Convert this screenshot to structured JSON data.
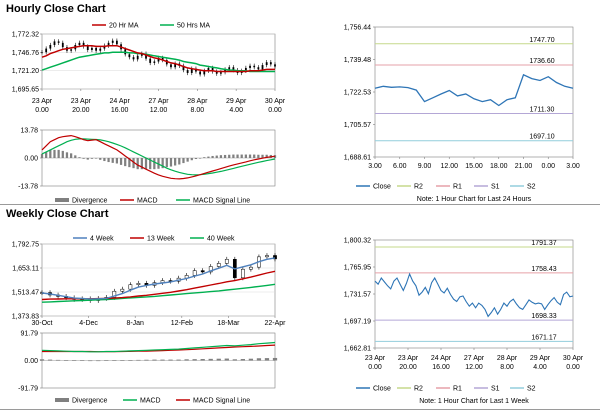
{
  "page": {
    "hourly_title": "Hourly Close Chart",
    "weekly_title": "Weekly Close Chart"
  },
  "colors": {
    "ma_short": "#c00000",
    "ma_long": "#00b050",
    "close": "#2e75b6",
    "r2": "#c5d98b",
    "r1": "#e6a0a8",
    "s1": "#b4a7d6",
    "s2": "#92cddc",
    "four_week": "#4f81bd",
    "candle": "#000000",
    "divergence": "#808080",
    "gridline": "#d9d9d9",
    "axis": "#7f7f7f"
  },
  "chart_data": [
    {
      "id": "hourly_price",
      "type": "line",
      "legend": [
        {
          "name": "20 Hr MA",
          "color_key": "ma_short"
        },
        {
          "name": "50 Hrs MA",
          "color_key": "ma_long"
        }
      ],
      "y_ticks": [
        "1,772.32",
        "1,746.76",
        "1,721.20",
        "1,695.65"
      ],
      "ylim": [
        1695.65,
        1772.32
      ],
      "x_ticks": [
        [
          "23 Apr",
          "0.00"
        ],
        [
          "23 Apr",
          "20.00"
        ],
        [
          "24 Apr",
          "16.00"
        ],
        [
          "27 Apr",
          "12.00"
        ],
        [
          "28 Apr",
          "8.00"
        ],
        [
          "29 Apr",
          "4.00"
        ],
        [
          "30 Apr",
          "0.00"
        ]
      ],
      "close": [
        1747,
        1752,
        1757,
        1762,
        1760,
        1754,
        1749,
        1751,
        1757,
        1760,
        1755,
        1750,
        1753,
        1749,
        1752,
        1756,
        1760,
        1763,
        1758,
        1751,
        1744,
        1740,
        1737,
        1742,
        1745,
        1738,
        1732,
        1734,
        1739,
        1736,
        1730,
        1726,
        1731,
        1728,
        1722,
        1718,
        1724,
        1720,
        1716,
        1721,
        1725,
        1720,
        1717,
        1719,
        1723,
        1726,
        1722,
        1718,
        1721,
        1725,
        1728,
        1726,
        1723,
        1729,
        1733,
        1730,
        1727
      ],
      "ma20": [
        1740,
        1742,
        1745,
        1747,
        1749,
        1751,
        1752,
        1753,
        1754,
        1755,
        1756,
        1756,
        1756,
        1755,
        1755,
        1755,
        1756,
        1756,
        1756,
        1754,
        1752,
        1750,
        1748,
        1746,
        1745,
        1743,
        1741,
        1739,
        1738,
        1736,
        1734,
        1732,
        1731,
        1729,
        1727,
        1725,
        1724,
        1723,
        1722,
        1721,
        1721,
        1721,
        1720,
        1720,
        1720,
        1720,
        1720,
        1720,
        1720,
        1720,
        1721,
        1721,
        1721,
        1722,
        1723,
        1723,
        1723
      ],
      "ma50": [
        1722,
        1724,
        1726,
        1728,
        1730,
        1732,
        1734,
        1736,
        1738,
        1740,
        1741,
        1742,
        1743,
        1744,
        1745,
        1746,
        1746,
        1747,
        1747,
        1747,
        1747,
        1746,
        1746,
        1745,
        1745,
        1744,
        1743,
        1742,
        1741,
        1740,
        1739,
        1738,
        1737,
        1736,
        1734,
        1733,
        1732,
        1731,
        1729,
        1728,
        1727,
        1726,
        1725,
        1724,
        1723,
        1722,
        1722,
        1721,
        1721,
        1721,
        1720,
        1720,
        1720,
        1720,
        1720,
        1720,
        1720
      ]
    },
    {
      "id": "hourly_macd",
      "type": "line",
      "legend": [
        {
          "name": "Divergence",
          "color_key": "divergence",
          "kind": "bar"
        },
        {
          "name": "MACD",
          "color_key": "ma_short"
        },
        {
          "name": "MACD Signal Line",
          "color_key": "ma_long"
        }
      ],
      "y_ticks": [
        "13.78",
        "0.00",
        "-13.78"
      ],
      "ylim": [
        -13.78,
        13.78
      ],
      "macd": [
        4,
        6,
        8,
        9,
        10,
        10.5,
        10.8,
        11,
        10.5,
        9.8,
        9,
        8.5,
        8.8,
        9,
        8,
        7,
        6,
        5,
        4,
        2.5,
        1,
        -0.5,
        -2,
        -3.5,
        -4.5,
        -5.5,
        -6.5,
        -7.5,
        -8.3,
        -9,
        -9.5,
        -10,
        -10.2,
        -10.3,
        -10.1,
        -9.8,
        -9.3,
        -8.8,
        -8.2,
        -7.6,
        -7,
        -6.4,
        -5.8,
        -5.2,
        -4.6,
        -4,
        -3.4,
        -2.9,
        -2.4,
        -1.9,
        -1.4,
        -0.9,
        -0.5,
        -0.1,
        0.3,
        0.6,
        0.9
      ],
      "signal": [
        2,
        3,
        4,
        5,
        6,
        7,
        8,
        8.7,
        9.2,
        9.4,
        9.4,
        9.3,
        9.2,
        9.1,
        8.9,
        8.5,
        8,
        7.4,
        6.7,
        5.9,
        5,
        4,
        3,
        2,
        1,
        0,
        -1,
        -2,
        -3,
        -4,
        -5,
        -5.8,
        -6.5,
        -7.1,
        -7.6,
        -8,
        -8.2,
        -8.3,
        -8.2,
        -8,
        -7.7,
        -7.4,
        -7,
        -6.6,
        -6.1,
        -5.6,
        -5.1,
        -4.6,
        -4.1,
        -3.6,
        -3.1,
        -2.6,
        -2.1,
        -1.7,
        -1.3,
        -0.9,
        -0.5
      ],
      "divergence": [
        2,
        3,
        4,
        4,
        4,
        3.5,
        2.8,
        2.3,
        1.3,
        0.4,
        -0.4,
        -0.8,
        -0.4,
        -0.1,
        -0.9,
        -1.5,
        -2,
        -2.4,
        -2.7,
        -3.4,
        -4,
        -4.5,
        -5,
        -5.5,
        -5.5,
        -5.5,
        -5.5,
        -5.5,
        -5.3,
        -5,
        -4.5,
        -4.2,
        -3.7,
        -3.2,
        -2.5,
        -1.8,
        -1.1,
        -0.5,
        0,
        0.4,
        0.7,
        1,
        1.2,
        1.4,
        1.5,
        1.6,
        1.7,
        1.7,
        1.7,
        1.7,
        1.7,
        1.7,
        1.6,
        1.6,
        1.6,
        1.5,
        1.4
      ]
    },
    {
      "id": "hourly_close_24h",
      "type": "line",
      "y_ticks": [
        "1,756.44",
        "1,739.48",
        "1,722.53",
        "1,705.57",
        "1,688.61"
      ],
      "ylim": [
        1688.61,
        1756.44
      ],
      "x_ticks": [
        "3.00",
        "6.00",
        "9.00",
        "12.00",
        "15.00",
        "18.00",
        "21.00",
        "0.00",
        "3.00"
      ],
      "levels": [
        {
          "key": "r2",
          "value": 1747.7,
          "label": "1747.70"
        },
        {
          "key": "r1",
          "value": 1736.6,
          "label": "1736.60"
        },
        {
          "key": "s1",
          "value": 1711.3,
          "label": "1711.30"
        },
        {
          "key": "s2",
          "value": 1697.1,
          "label": "1697.10"
        }
      ],
      "close": [
        1724.5,
        1725.5,
        1725,
        1725.2,
        1724.8,
        1723.5,
        1717.5,
        1719.5,
        1721.5,
        1723.3,
        1720.5,
        1721.5,
        1719,
        1717.5,
        1718.5,
        1715.5,
        1718.5,
        1719.5,
        1731.5,
        1729.5,
        1728.5,
        1730.5,
        1727.5,
        1725.5,
        1724.5
      ],
      "legend": [
        {
          "name": "Close",
          "color_key": "close"
        },
        {
          "name": "R2",
          "color_key": "r2"
        },
        {
          "name": "R1",
          "color_key": "r1"
        },
        {
          "name": "S1",
          "color_key": "s1"
        },
        {
          "name": "S2",
          "color_key": "s2"
        }
      ],
      "note": "Note: 1 Hour Chart for Last 24 Hours"
    },
    {
      "id": "weekly_price",
      "type": "line",
      "legend": [
        {
          "name": "4 Week",
          "color_key": "four_week"
        },
        {
          "name": "13 Week",
          "color_key": "ma_short"
        },
        {
          "name": "40 Week",
          "color_key": "ma_long"
        }
      ],
      "y_ticks": [
        "1,792.75",
        "1,653.11",
        "1,513.47",
        "1,373.83"
      ],
      "ylim": [
        1373.83,
        1792.75
      ],
      "x_ticks": [
        "30-Oct",
        "4-Dec",
        "8-Jan",
        "12-Feb",
        "18-Mar",
        "22-Apr"
      ],
      "close": [
        1510,
        1496,
        1488,
        1480,
        1470,
        1474,
        1464,
        1476,
        1482,
        1518,
        1530,
        1556,
        1564,
        1552,
        1568,
        1580,
        1576,
        1594,
        1610,
        1638,
        1630,
        1662,
        1680,
        1704,
        1596,
        1646,
        1658,
        1718,
        1726,
        1706
      ],
      "wk4": [
        1508,
        1502,
        1494,
        1486,
        1478,
        1476,
        1472,
        1474,
        1476,
        1490,
        1504,
        1524,
        1542,
        1552,
        1560,
        1566,
        1572,
        1582,
        1592,
        1606,
        1618,
        1636,
        1652,
        1668,
        1648,
        1660,
        1672,
        1690,
        1704,
        1712
      ],
      "wk13": [
        1470,
        1472,
        1473,
        1474,
        1474,
        1474,
        1474,
        1475,
        1476,
        1478,
        1481,
        1485,
        1490,
        1494,
        1500,
        1506,
        1512,
        1519,
        1527,
        1536,
        1545,
        1554,
        1563,
        1573,
        1580,
        1590,
        1600,
        1612,
        1624,
        1634
      ],
      "wk40": [
        1454,
        1456,
        1458,
        1460,
        1462,
        1464,
        1466,
        1468,
        1470,
        1473,
        1476,
        1479,
        1482,
        1485,
        1488,
        1492,
        1496,
        1500,
        1504,
        1508,
        1512,
        1516,
        1520,
        1525,
        1530,
        1535,
        1540,
        1546,
        1552,
        1558
      ]
    },
    {
      "id": "weekly_macd",
      "type": "line",
      "legend": [
        {
          "name": "Divergence",
          "color_key": "divergence",
          "kind": "bar"
        },
        {
          "name": "MACD",
          "color_key": "ma_long"
        },
        {
          "name": "MACD Signal Line",
          "color_key": "ma_short"
        }
      ],
      "y_ticks": [
        "91.79",
        "0.00",
        "-91.79"
      ],
      "ylim": [
        -91.79,
        91.79
      ],
      "macd": [
        34,
        33,
        32,
        31,
        30,
        30,
        29,
        29,
        30,
        30,
        31,
        32,
        33,
        34,
        35,
        36,
        37,
        38,
        40,
        42,
        44,
        46,
        48,
        50,
        49,
        51,
        53,
        56,
        58,
        60
      ],
      "signal": [
        30,
        30,
        30,
        30,
        30,
        30,
        30,
        29.5,
        29.5,
        29.5,
        30,
        30.5,
        31,
        31.5,
        32,
        33,
        34,
        35,
        36,
        37.5,
        39,
        40.5,
        42,
        43.5,
        45,
        46,
        47,
        48.5,
        50,
        51.5
      ],
      "divergence": [
        4,
        3,
        2,
        1,
        0.5,
        0.5,
        -0.5,
        -0.5,
        0.5,
        0.5,
        1,
        1.5,
        2,
        2.5,
        3,
        3,
        3,
        3,
        4,
        4.5,
        5,
        5.5,
        6,
        6.5,
        4,
        5,
        6,
        7.5,
        8,
        8.5
      ]
    },
    {
      "id": "weekly_close_1wk",
      "type": "line",
      "y_ticks": [
        "1,800.32",
        "1,765.95",
        "1,731.57",
        "1,697.19",
        "1,662.81"
      ],
      "ylim": [
        1662.81,
        1800.32
      ],
      "x_ticks": [
        [
          "23 Apr",
          "0.00"
        ],
        [
          "23 Apr",
          "20.00"
        ],
        [
          "24 Apr",
          "16.00"
        ],
        [
          "27 Apr",
          "12.00"
        ],
        [
          "28 Apr",
          "8.00"
        ],
        [
          "29 Apr",
          "4.00"
        ],
        [
          "30 Apr",
          "0.00"
        ]
      ],
      "levels": [
        {
          "key": "r2",
          "value": 1791.37,
          "label": "1791.37"
        },
        {
          "key": "r1",
          "value": 1758.43,
          "label": "1758.43"
        },
        {
          "key": "s1",
          "value": 1698.33,
          "label": "1698.33"
        },
        {
          "key": "s2",
          "value": 1671.17,
          "label": "1671.17"
        }
      ],
      "close": [
        1748,
        1744,
        1752,
        1747,
        1742,
        1738,
        1748,
        1752,
        1744,
        1736,
        1745,
        1757,
        1748,
        1742,
        1730,
        1734,
        1740,
        1732,
        1746,
        1752,
        1744,
        1736,
        1733,
        1739,
        1731,
        1725,
        1722,
        1728,
        1729,
        1722,
        1716,
        1720,
        1714,
        1720,
        1717,
        1712,
        1703,
        1708,
        1714,
        1706,
        1712,
        1720,
        1716,
        1722,
        1725,
        1719,
        1714,
        1712,
        1718,
        1724,
        1721,
        1719,
        1720,
        1719,
        1712,
        1718,
        1723,
        1727,
        1721,
        1718,
        1731,
        1734,
        1728,
        1729
      ],
      "legend": [
        {
          "name": "Close",
          "color_key": "close"
        },
        {
          "name": "R2",
          "color_key": "r2"
        },
        {
          "name": "R1",
          "color_key": "r1"
        },
        {
          "name": "S1",
          "color_key": "s1"
        },
        {
          "name": "S2",
          "color_key": "s2"
        }
      ],
      "note": "Note: 1 Hour Chart for Last 1 Week"
    }
  ]
}
